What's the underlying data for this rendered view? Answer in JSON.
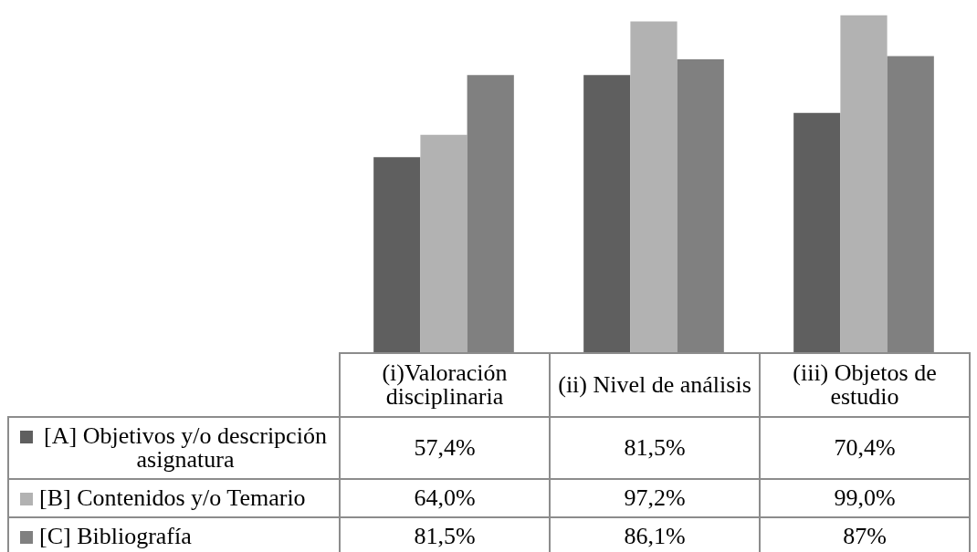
{
  "chart_data": {
    "type": "bar",
    "categories": [
      "(i)Valoración disciplinaria",
      "(ii) Nivel de análisis",
      "(iii) Objetos de estudio"
    ],
    "series": [
      {
        "name": "[A] Objetivos y/o descripción asignatura",
        "color": "#5f5f5f",
        "values": [
          57.4,
          81.5,
          70.4
        ],
        "value_labels": [
          "57,4%",
          "81,5%",
          "70,4%"
        ]
      },
      {
        "name": "[B] Contenidos y/o Temario",
        "color": "#b2b2b2",
        "values": [
          64.0,
          97.2,
          99.0
        ],
        "value_labels": [
          "64,0%",
          "97,2%",
          "99,0%"
        ]
      },
      {
        "name": "[C] Bibliografía",
        "color": "#808080",
        "values": [
          81.5,
          86.1,
          87
        ],
        "value_labels": [
          "81,5%",
          "86,1%",
          "87%"
        ]
      }
    ],
    "legend": "bottom left"
  }
}
